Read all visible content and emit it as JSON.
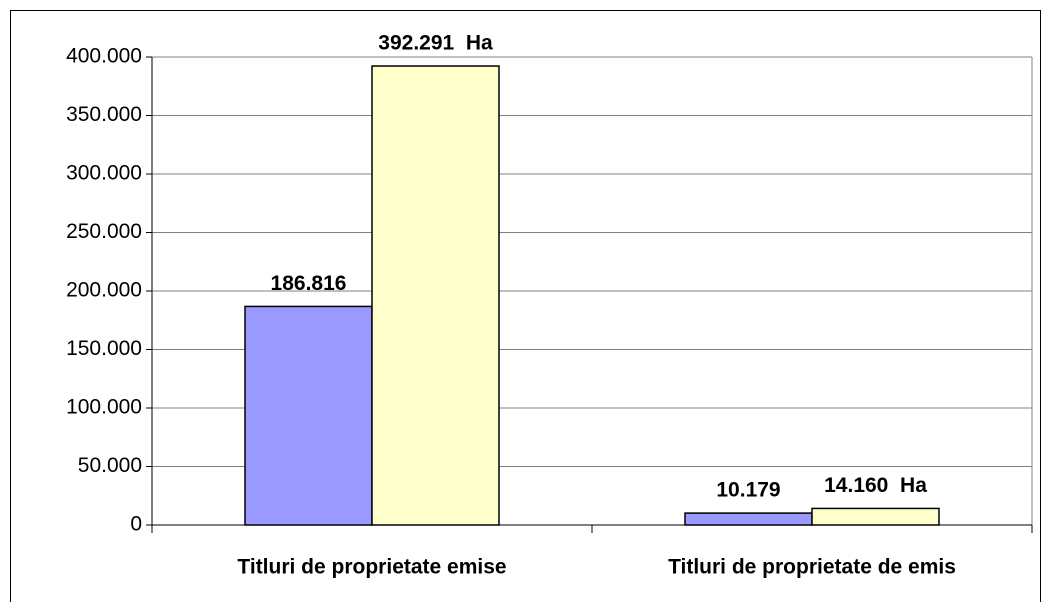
{
  "chart_data": {
    "type": "bar",
    "categories": [
      "Titluri de proprietate emise",
      "Titluri de proprietate de emis"
    ],
    "series": [
      {
        "color": "#9999ff",
        "values": [
          186816,
          10179
        ],
        "value_labels": [
          "186.816",
          "10.179"
        ]
      },
      {
        "color": "#ffffcc",
        "values": [
          392291,
          14160
        ],
        "value_labels": [
          "392.291  Ha",
          "14.160  Ha"
        ]
      }
    ],
    "ylim": [
      0,
      400000
    ],
    "yticks": [
      0,
      {
        "value": 50000,
        "label": "50.000"
      },
      {
        "value": 100000,
        "label": "100.000"
      },
      {
        "value": 150000,
        "label": "150.000"
      },
      {
        "value": 200000,
        "label": "200.000"
      },
      {
        "value": 250000,
        "label": "250.000"
      },
      {
        "value": 300000,
        "label": "300.000"
      },
      {
        "value": 350000,
        "label": "350.000"
      },
      {
        "value": 400000,
        "label": "400.000"
      }
    ],
    "grid": true
  }
}
